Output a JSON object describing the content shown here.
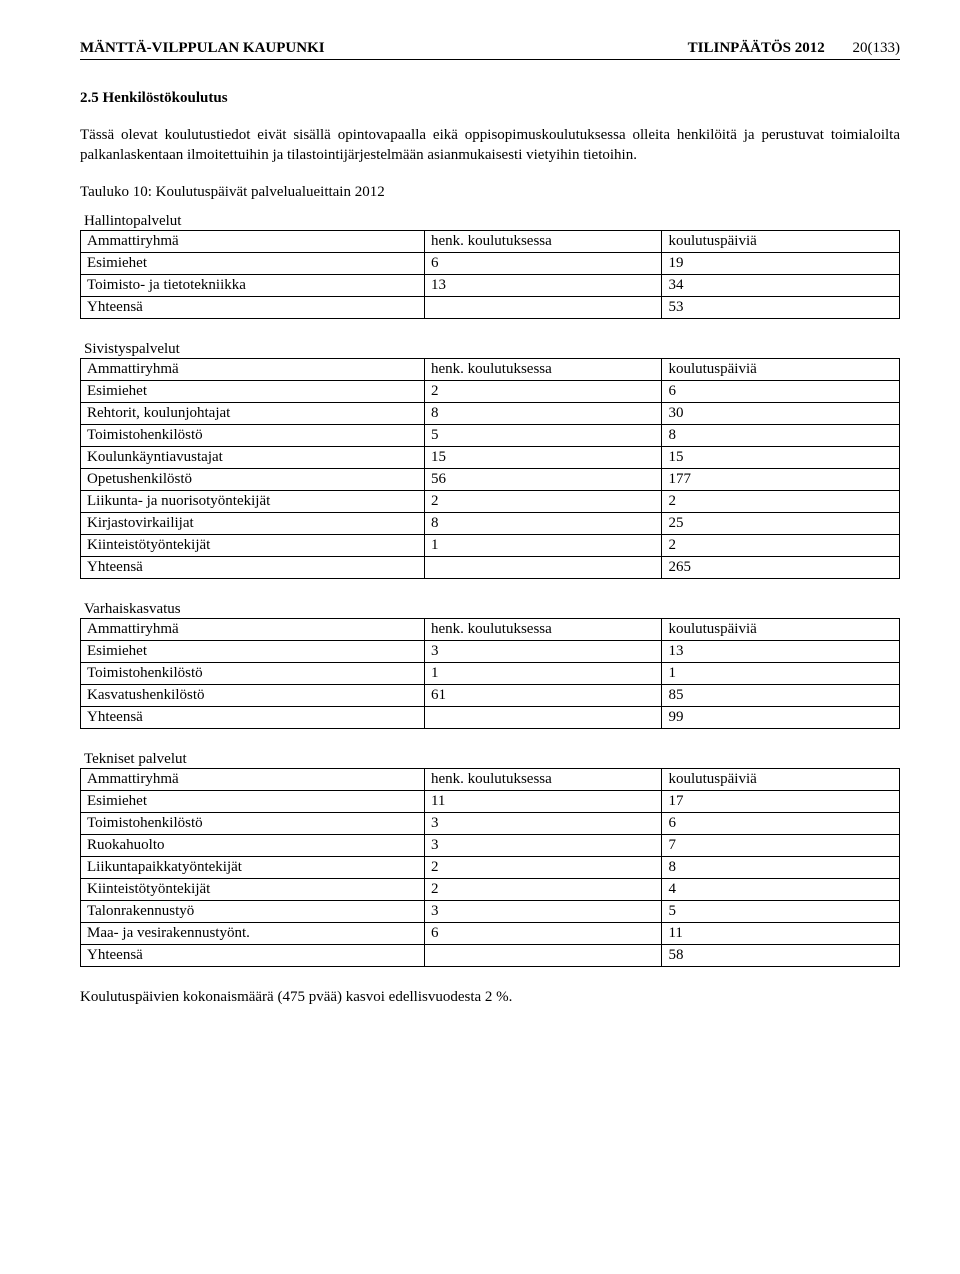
{
  "header": {
    "left": "MÄNTTÄ-VILPPULAN KAUPUNKI",
    "center": "TILINPÄÄTÖS 2012",
    "page": "20(133)"
  },
  "section": {
    "number": "2.5",
    "title": "Henkilöstökoulutus",
    "intro": "Tässä olevat koulutustiedot eivät sisällä opintovapaalla eikä oppisopimuskoulutuksessa olleita henkilöitä ja perustuvat toimialoilta palkanlaskentaan ilmoitettuihin ja tilastointijärjestelmään asianmukaisesti vietyihin tietoihin.",
    "table_caption": "Tauluko 10: Koulutuspäivät palvelualueittain 2012"
  },
  "columns": {
    "a": "Ammattiryhmä",
    "b": "henk. koulutuksessa",
    "c": "koulutuspäiviä"
  },
  "tables": [
    {
      "title": "Hallintopalvelut",
      "rows": [
        {
          "a": "Esimiehet",
          "b": "6",
          "c": "19"
        },
        {
          "a": "Toimisto- ja tietotekniikka",
          "b": "13",
          "c": "34"
        },
        {
          "a": "Yhteensä",
          "b": "",
          "c": "53"
        }
      ]
    },
    {
      "title": "Sivistyspalvelut",
      "rows": [
        {
          "a": "Esimiehet",
          "b": "2",
          "c": "6"
        },
        {
          "a": "Rehtorit, koulunjohtajat",
          "b": "8",
          "c": "30"
        },
        {
          "a": "Toimistohenkilöstö",
          "b": "5",
          "c": "8"
        },
        {
          "a": "Koulunkäyntiavustajat",
          "b": "15",
          "c": "15"
        },
        {
          "a": "Opetushenkilöstö",
          "b": "56",
          "c": "177"
        },
        {
          "a": "Liikunta- ja nuorisotyöntekijät",
          "b": "2",
          "c": "2"
        },
        {
          "a": "Kirjastovirkailijat",
          "b": "8",
          "c": "25"
        },
        {
          "a": "Kiinteistötyöntekijät",
          "b": "1",
          "c": "2"
        },
        {
          "a": "Yhteensä",
          "b": "",
          "c": "265"
        }
      ]
    },
    {
      "title": "Varhaiskasvatus",
      "rows": [
        {
          "a": "Esimiehet",
          "b": "3",
          "c": "13"
        },
        {
          "a": "Toimistohenkilöstö",
          "b": "1",
          "c": "1"
        },
        {
          "a": "Kasvatushenkilöstö",
          "b": "61",
          "c": "85"
        },
        {
          "a": "Yhteensä",
          "b": "",
          "c": "99"
        }
      ]
    },
    {
      "title": "Tekniset palvelut",
      "rows": [
        {
          "a": "Esimiehet",
          "b": "11",
          "c": "17"
        },
        {
          "a": "Toimistohenkilöstö",
          "b": "3",
          "c": "6"
        },
        {
          "a": "Ruokahuolto",
          "b": "3",
          "c": "7"
        },
        {
          "a": "Liikuntapaikkatyöntekijät",
          "b": "2",
          "c": "8"
        },
        {
          "a": "Kiinteistötyöntekijät",
          "b": "2",
          "c": "4"
        },
        {
          "a": "Talonrakennustyö",
          "b": "3",
          "c": "5"
        },
        {
          "a": "Maa- ja vesirakennustyönt.",
          "b": "6",
          "c": "11"
        },
        {
          "a": "Yhteensä",
          "b": "",
          "c": "58"
        }
      ]
    }
  ],
  "footer_text": "Koulutuspäivien kokonaismäärä (475 pvää) kasvoi edellisvuodesta 2 %."
}
